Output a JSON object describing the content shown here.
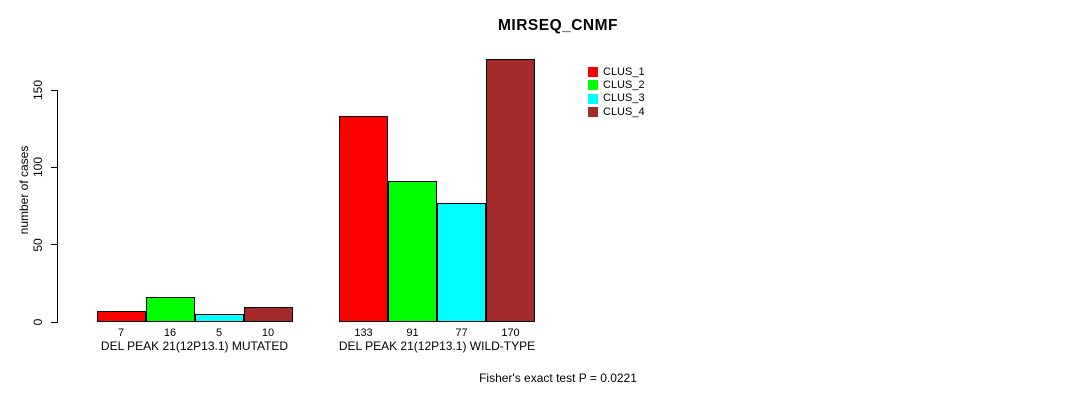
{
  "title": "MIRSEQ_CNMF",
  "y_axis": {
    "label": "number of cases",
    "tick_values": [
      0,
      50,
      100,
      150
    ]
  },
  "footer": "Fisher's exact test P = 0.0221",
  "chart_data": {
    "type": "bar",
    "title": "MIRSEQ_CNMF",
    "xlabel": "",
    "ylabel": "number of cases",
    "ylim": [
      0,
      170
    ],
    "yticks": [
      0,
      50,
      100,
      150
    ],
    "grid": false,
    "legend_position": "top-right",
    "bar_value_labels_shown": true,
    "categories": [
      "DEL PEAK 21(12P13.1) MUTATED",
      "DEL PEAK 21(12P13.1) WILD-TYPE"
    ],
    "series": [
      {
        "name": "CLUS_1",
        "color": "#FF0000",
        "values": [
          7,
          133
        ]
      },
      {
        "name": "CLUS_2",
        "color": "#00FF00",
        "values": [
          16,
          91
        ]
      },
      {
        "name": "CLUS_3",
        "color": "#00FFFF",
        "values": [
          5,
          77
        ]
      },
      {
        "name": "CLUS_4",
        "color": "#A52A2A",
        "values": [
          10,
          170
        ]
      }
    ],
    "annotation": "Fisher's exact test P = 0.0221"
  }
}
